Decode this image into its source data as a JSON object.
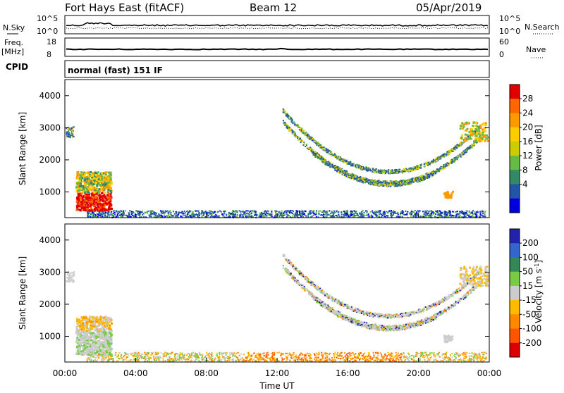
{
  "header": {
    "station": "Fort Hays East (fitACF)",
    "beam": "Beam 12",
    "date": "05/Apr/2019"
  },
  "top_panel": {
    "left_label": "N.Sky",
    "left_ticks": [
      "10^5",
      "10^0"
    ],
    "right_label": "N.Search",
    "right_ticks": [
      "10^5",
      "10^0"
    ]
  },
  "freq_panel": {
    "left_label_line1": "Freq.",
    "left_label_line2": "[MHz]",
    "left_ticks": [
      "18",
      "8"
    ],
    "right_label": "Nave",
    "right_ticks": [
      "60",
      "0"
    ]
  },
  "cpid": {
    "label": "CPID",
    "text": "normal (fast) 151 IF"
  },
  "chart_data": [
    {
      "type": "heatmap",
      "name": "power",
      "ylabel": "Slant Range [km]",
      "yticks": [
        1000,
        2000,
        3000,
        4000
      ],
      "ylim": [
        200,
        4500
      ],
      "xlim": [
        0,
        24
      ],
      "colorbar_label": "Power [dB]",
      "colorbar_ticks": [
        "28",
        "24",
        "20",
        "16",
        "12",
        "8",
        "4"
      ],
      "colorbar_colors": [
        "#e00000",
        "#ff6600",
        "#ff9900",
        "#ffcc00",
        "#cccc00",
        "#66bb44",
        "#338866",
        "#2255aa",
        "#0000dd"
      ]
    },
    {
      "type": "heatmap",
      "name": "velocity",
      "ylabel": "Slant Range [km]",
      "yticks": [
        1000,
        2000,
        3000,
        4000
      ],
      "ylim": [
        200,
        4500
      ],
      "xlim": [
        0,
        24
      ],
      "xlabel": "Time UT",
      "xticks": [
        "00:00",
        "04:00",
        "08:00",
        "12:00",
        "16:00",
        "20:00",
        "00:00"
      ],
      "colorbar_label": "Velocity [m s",
      "colorbar_unit_sup": "-1",
      "colorbar_unit_end": "]",
      "colorbar_ticks": [
        "200",
        "100",
        "50",
        "15",
        "-15",
        "-50",
        "-100",
        "-200"
      ],
      "colorbar_colors": [
        "#2222aa",
        "#3366cc",
        "#338855",
        "#77cc44",
        "#cccccc",
        "#ffbb00",
        "#ff8800",
        "#ff5500",
        "#dd0000"
      ]
    }
  ]
}
